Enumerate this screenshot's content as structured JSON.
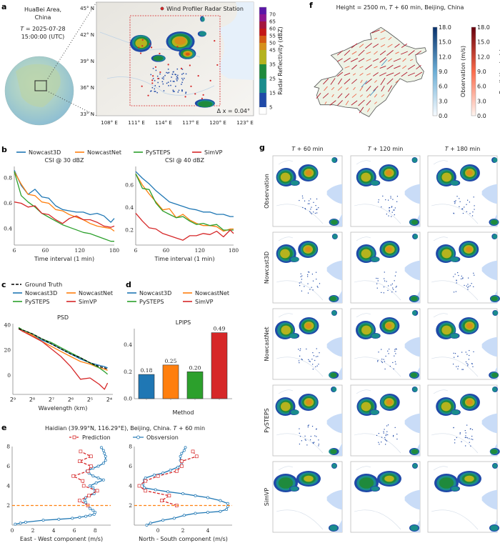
{
  "panel_labels": {
    "a": "a",
    "b": "b",
    "c": "c",
    "d": "d",
    "e": "e",
    "f": "f",
    "g": "g"
  },
  "colors": {
    "Nowcast3D": "#1f77b4",
    "NowcastNet": "#ff7f0e",
    "PySTEPS": "#2ca02c",
    "SimVP": "#d62728",
    "Ground Truth": "#000000",
    "threshold_line": "#ff7f0e",
    "station": "#d62728"
  },
  "panel_a": {
    "area_line1": "HuaBei Area,",
    "area_line2": "China",
    "time_prefix": "T",
    "time_line1": " = 2025-07-28",
    "time_line2": "15:00:00 (UTC)",
    "station_legend": "Wind Profiler Radar Station",
    "resolution_label": "Δ x = 0.04°",
    "lat_labels": [
      "45° N",
      "42° N",
      "39° N",
      "36° N",
      "33° N"
    ],
    "lon_labels": [
      "108° E",
      "111° E",
      "114° E",
      "117° E",
      "120° E",
      "123° E"
    ],
    "colorbar": {
      "label": "Radar Reflectivity (dBZ)",
      "ticks": [
        "5",
        "15",
        "25",
        "35",
        "45",
        "50",
        "55",
        "60",
        "65",
        "70"
      ],
      "tick_values": [
        5,
        15,
        25,
        35,
        45,
        50,
        55,
        60,
        65,
        70
      ],
      "bounds": [
        0,
        5,
        15,
        25,
        35,
        45,
        50,
        55,
        60,
        65,
        70,
        75
      ],
      "colors": [
        "#ffffff",
        "#1f4aa8",
        "#1a8c8c",
        "#1f8a3c",
        "#b5b31e",
        "#d6901a",
        "#d45a12",
        "#c41616",
        "#a5153e",
        "#8c1690",
        "#5b16a6"
      ]
    }
  },
  "legend_b": [
    "Nowcast3D",
    "NowcastNet",
    "PySTEPS",
    "SimVP"
  ],
  "legend_c": {
    "ground_truth": "Ground Truth",
    "items": [
      "Nowcast3D",
      "NowcastNet",
      "PySTEPS",
      "SimVP"
    ]
  },
  "legend_d": [
    "Nowcast3D",
    "NowcastNet",
    "PySTEPS",
    "SimVP"
  ],
  "panel_e": {
    "title_prefix": "Haidian (39.99°N, 116.29°E), Beijing, China. ",
    "title_T": "T",
    "title_suffix": " + 60 min",
    "legend_prediction": "Prediction",
    "legend_observation": "Obsversion"
  },
  "panel_f": {
    "title_prefix": "Height = 2500 m, ",
    "title_T": "T",
    "title_suffix": " + 60 min, Beijing, China",
    "observation_colorbar": {
      "label": "Observation (m/s)",
      "ticks": [
        "0.0",
        "3.0",
        "6.0",
        "9.0",
        "12.0",
        "15.0",
        "18.0"
      ],
      "range": [
        0,
        18
      ],
      "colors": [
        "#f7fbff",
        "#08306b"
      ]
    },
    "prediction_colorbar": {
      "label": "Prediction (m/s)",
      "ticks": [
        "0.0",
        "3.0",
        "6.0",
        "9.0",
        "12.0",
        "15.0",
        "18.0"
      ],
      "range": [
        0,
        18
      ],
      "colors": [
        "#fff5f0",
        "#67000d"
      ]
    }
  },
  "panel_g": {
    "col_headers": [
      {
        "T": "T",
        "suffix": " + 60 min"
      },
      {
        "T": "T",
        "suffix": " + 120 min"
      },
      {
        "T": "T",
        "suffix": " + 180 min"
      }
    ],
    "row_labels": [
      "Observation",
      "Nowcast3D",
      "NowcastNet",
      "PySTEPS",
      "SimVP"
    ]
  },
  "chart_data": [
    {
      "id": "csi30",
      "type": "line",
      "title": "CSI @ 30 dBZ",
      "xlabel": "Time interval (1 min)",
      "ylabel": "",
      "xlim": [
        6,
        180
      ],
      "ylim": [
        0.27,
        0.89
      ],
      "xticks": [
        6,
        60,
        120,
        180
      ],
      "xtick_labels": [
        "6",
        "60",
        "120",
        "180"
      ],
      "yticks": [
        0.4,
        0.6,
        0.8
      ],
      "ytick_labels": [
        "0.4",
        "0.6",
        "0.8"
      ],
      "x": [
        6,
        18,
        30,
        42,
        54,
        66,
        78,
        90,
        102,
        114,
        126,
        138,
        150,
        162,
        174,
        180
      ],
      "series": [
        {
          "name": "Nowcast3D",
          "values": [
            0.86,
            0.74,
            0.67,
            0.71,
            0.65,
            0.64,
            0.58,
            0.55,
            0.54,
            0.53,
            0.53,
            0.51,
            0.52,
            0.5,
            0.45,
            0.48
          ]
        },
        {
          "name": "NowcastNet",
          "values": [
            0.85,
            0.75,
            0.67,
            0.66,
            0.61,
            0.6,
            0.55,
            0.54,
            0.51,
            0.49,
            0.47,
            0.44,
            0.42,
            0.41,
            0.4,
            0.38
          ]
        },
        {
          "name": "PySTEPS",
          "values": [
            0.85,
            0.66,
            0.61,
            0.57,
            0.52,
            0.49,
            0.46,
            0.43,
            0.41,
            0.39,
            0.37,
            0.36,
            0.34,
            0.32,
            0.3,
            0.3
          ]
        },
        {
          "name": "SimVP",
          "values": [
            0.61,
            0.6,
            0.57,
            0.58,
            0.52,
            0.51,
            0.47,
            0.44,
            0.48,
            0.5,
            0.47,
            0.47,
            0.45,
            0.42,
            0.41,
            0.42
          ]
        }
      ]
    },
    {
      "id": "csi40",
      "type": "line",
      "title": "CSI @ 40 dBZ",
      "xlabel": "Time interval (1 min)",
      "ylabel": "",
      "xlim": [
        6,
        180
      ],
      "ylim": [
        0.067,
        0.765
      ],
      "xticks": [
        6,
        60,
        120,
        180
      ],
      "xtick_labels": [
        "6",
        "60",
        "120",
        "180"
      ],
      "yticks": [
        0.2,
        0.4,
        0.6
      ],
      "ytick_labels": [
        "0.2",
        "0.4",
        "0.6"
      ],
      "x": [
        6,
        18,
        30,
        42,
        54,
        66,
        78,
        90,
        102,
        114,
        126,
        138,
        150,
        162,
        174,
        180
      ],
      "series": [
        {
          "name": "Nowcast3D",
          "values": [
            0.72,
            0.66,
            0.61,
            0.55,
            0.5,
            0.45,
            0.43,
            0.41,
            0.39,
            0.38,
            0.36,
            0.36,
            0.34,
            0.34,
            0.32,
            0.32
          ]
        },
        {
          "name": "NowcastNet",
          "values": [
            0.7,
            0.6,
            0.52,
            0.45,
            0.38,
            0.39,
            0.31,
            0.34,
            0.29,
            0.26,
            0.24,
            0.24,
            0.23,
            0.19,
            0.21,
            0.21
          ]
        },
        {
          "name": "PySTEPS",
          "values": [
            0.7,
            0.57,
            0.56,
            0.44,
            0.37,
            0.34,
            0.31,
            0.32,
            0.28,
            0.25,
            0.26,
            0.24,
            0.25,
            0.2,
            0.2,
            0.2
          ]
        },
        {
          "name": "SimVP",
          "values": [
            0.35,
            0.28,
            0.22,
            0.21,
            0.17,
            0.15,
            0.13,
            0.11,
            0.15,
            0.15,
            0.17,
            0.16,
            0.19,
            0.14,
            0.2,
            0.17
          ]
        }
      ]
    },
    {
      "id": "psd",
      "type": "line",
      "title": "PSD",
      "xlabel": "Wavelength (km)",
      "ylabel": "",
      "xscale": "log2-reversed",
      "xlim": [
        512,
        16
      ],
      "ylim": [
        -15,
        41
      ],
      "xticks": [
        512,
        256,
        128,
        64,
        32,
        16
      ],
      "xtick_labels": [
        "2⁹",
        "2⁸",
        "2⁷",
        "2⁶",
        "2⁵",
        "2⁴"
      ],
      "yticks": [
        0,
        20,
        40
      ],
      "ytick_labels": [
        "0",
        "20",
        "40"
      ],
      "x": [
        416,
        362,
        256,
        181,
        128,
        91,
        64,
        45,
        32,
        23,
        19,
        17
      ],
      "series": [
        {
          "name": "Ground Truth",
          "dashed": true,
          "values": [
            37,
            36,
            33,
            29,
            25,
            21,
            17,
            14,
            10,
            7,
            6,
            5
          ]
        },
        {
          "name": "Nowcast3D",
          "values": [
            37,
            35,
            32,
            28,
            25,
            21,
            17,
            13,
            10,
            8,
            7,
            6
          ]
        },
        {
          "name": "NowcastNet",
          "values": [
            37,
            35,
            32,
            27,
            23,
            19,
            15,
            11,
            9,
            6,
            5,
            4
          ]
        },
        {
          "name": "PySTEPS",
          "values": [
            38,
            36,
            33,
            29,
            26,
            22,
            18,
            14,
            10,
            6,
            3,
            1
          ]
        },
        {
          "name": "SimVP",
          "values": [
            37,
            35,
            31,
            27,
            21,
            15,
            7,
            -3,
            -2,
            -7,
            -11,
            -6
          ]
        }
      ]
    },
    {
      "id": "lpips",
      "type": "bar",
      "title": "LPIPS",
      "xlabel": "Method",
      "ylabel": "",
      "ylim": [
        0,
        0.52
      ],
      "yticks": [
        0.0,
        0.2,
        0.4
      ],
      "ytick_labels": [
        "0.0",
        "0.2",
        "0.4"
      ],
      "categories": [
        "Nowcast3D",
        "NowcastNet",
        "PySTEPS",
        "SimVP"
      ],
      "values": [
        0.18,
        0.25,
        0.2,
        0.49
      ],
      "value_labels": [
        "0.18",
        "0.25",
        "0.20",
        "0.49"
      ]
    },
    {
      "id": "ew_profile",
      "type": "line",
      "xlabel": "East - West  component (m/s)",
      "ylabel": "",
      "xlim": [
        0,
        9.5
      ],
      "ylim": [
        0,
        8
      ],
      "xticks": [
        0,
        2,
        4,
        6,
        8
      ],
      "xtick_labels": [
        "0",
        "2",
        "4",
        "6",
        "8"
      ],
      "yticks": [
        2,
        4,
        6,
        8
      ],
      "ytick_labels": [
        "2",
        "4",
        "6",
        "8"
      ],
      "reference_y": 2,
      "series": [
        {
          "name": "Obsversion",
          "marker": "circle",
          "points": [
            [
              0.3,
              0.1
            ],
            [
              0.8,
              0.2
            ],
            [
              1.3,
              0.3
            ],
            [
              3.0,
              0.5
            ],
            [
              4.5,
              0.6
            ],
            [
              5.8,
              0.7
            ],
            [
              6.5,
              0.8
            ],
            [
              7.1,
              0.9
            ],
            [
              7.5,
              1.0
            ],
            [
              7.9,
              1.1
            ],
            [
              8.0,
              1.3
            ],
            [
              7.8,
              1.5
            ],
            [
              7.5,
              1.7
            ],
            [
              7.3,
              2.0
            ],
            [
              7.1,
              2.3
            ],
            [
              7.0,
              2.5
            ],
            [
              7.1,
              2.8
            ],
            [
              7.4,
              3.0
            ],
            [
              7.9,
              3.2
            ],
            [
              8.0,
              3.5
            ],
            [
              7.8,
              3.8
            ],
            [
              7.5,
              4.0
            ],
            [
              8.1,
              4.3
            ],
            [
              8.8,
              4.6
            ],
            [
              8.3,
              4.8
            ],
            [
              7.8,
              5.0
            ],
            [
              7.4,
              5.3
            ],
            [
              7.2,
              5.5
            ],
            [
              7.8,
              5.8
            ],
            [
              8.3,
              6.0
            ],
            [
              8.8,
              6.3
            ],
            [
              9.0,
              6.6
            ],
            [
              9.0,
              7.0
            ],
            [
              8.9,
              7.3
            ],
            [
              8.8,
              7.6
            ],
            [
              8.6,
              7.9
            ]
          ]
        },
        {
          "name": "Prediction",
          "marker": "square",
          "dashed": true,
          "points": [
            [
              7.3,
              2.0
            ],
            [
              6.5,
              2.5
            ],
            [
              7.4,
              3.0
            ],
            [
              8.2,
              3.5
            ],
            [
              6.9,
              4.0
            ],
            [
              6.8,
              4.5
            ],
            [
              5.9,
              5.0
            ],
            [
              7.3,
              5.5
            ],
            [
              7.6,
              6.0
            ],
            [
              6.5,
              6.5
            ],
            [
              7.6,
              7.0
            ],
            [
              6.6,
              7.5
            ]
          ]
        }
      ]
    },
    {
      "id": "ns_profile",
      "type": "line",
      "xlabel": "North - South  component (m/s)",
      "ylabel": "",
      "xlim": [
        -1.9,
        5.95
      ],
      "ylim": [
        0,
        8
      ],
      "xticks": [
        0,
        2,
        4
      ],
      "xtick_labels": [
        "0",
        "2",
        "4"
      ],
      "yticks": [
        2,
        4,
        6,
        8
      ],
      "ytick_labels": [
        "2",
        "4",
        "6",
        "8"
      ],
      "reference_y": 2,
      "series": [
        {
          "name": "Obsversion",
          "marker": "circle",
          "points": [
            [
              -0.9,
              0.0
            ],
            [
              -0.6,
              0.2
            ],
            [
              0.4,
              0.5
            ],
            [
              1.3,
              0.7
            ],
            [
              2.1,
              1.0
            ],
            [
              3.0,
              1.2
            ],
            [
              4.0,
              1.3
            ],
            [
              5.0,
              1.4
            ],
            [
              5.5,
              1.6
            ],
            [
              5.6,
              1.9
            ],
            [
              5.6,
              2.2
            ],
            [
              5.0,
              2.5
            ],
            [
              4.0,
              2.8
            ],
            [
              3.0,
              3.0
            ],
            [
              2.0,
              3.2
            ],
            [
              0.8,
              3.4
            ],
            [
              -0.2,
              3.6
            ],
            [
              -1.1,
              3.8
            ],
            [
              -1.2,
              4.2
            ],
            [
              -1.1,
              4.6
            ],
            [
              -1.0,
              4.8
            ],
            [
              -0.3,
              5.1
            ],
            [
              0.4,
              5.3
            ],
            [
              1.0,
              5.6
            ],
            [
              1.6,
              5.9
            ],
            [
              1.9,
              6.2
            ],
            [
              1.8,
              6.6
            ],
            [
              1.8,
              7.0
            ],
            [
              1.9,
              7.3
            ],
            [
              2.1,
              7.6
            ],
            [
              2.2,
              7.9
            ]
          ]
        },
        {
          "name": "Prediction",
          "marker": "square",
          "dashed": true,
          "points": [
            [
              1.5,
              2.0
            ],
            [
              0.3,
              2.5
            ],
            [
              0.9,
              3.0
            ],
            [
              -1.0,
              3.5
            ],
            [
              -1.5,
              4.0
            ],
            [
              -1.0,
              4.5
            ],
            [
              0.0,
              5.0
            ],
            [
              1.5,
              5.5
            ],
            [
              1.9,
              6.0
            ],
            [
              1.9,
              6.5
            ],
            [
              3.1,
              7.0
            ],
            [
              2.8,
              7.5
            ]
          ]
        }
      ]
    }
  ]
}
